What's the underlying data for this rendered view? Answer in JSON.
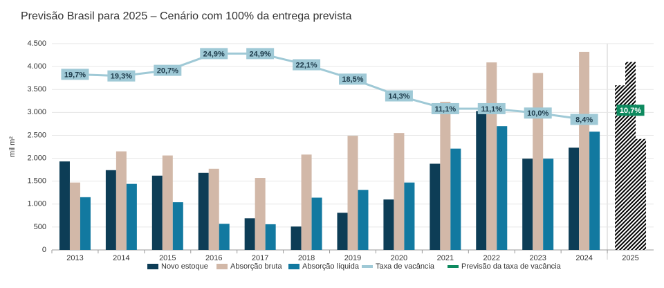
{
  "chart_data": {
    "type": "bar",
    "title": "Previsão Brasil para 2025 – Cenário com 100% da entrega prevista",
    "y_label": "mil m²",
    "categories": [
      "2013",
      "2014",
      "2015",
      "2016",
      "2017",
      "2018",
      "2019",
      "2020",
      "2021",
      "2022",
      "2023",
      "2024",
      "2025"
    ],
    "ylim": [
      0,
      4500
    ],
    "yticks": [
      0,
      500,
      {
        "value": 1000,
        "label": "1.000"
      },
      {
        "value": 1500,
        "label": "1.500"
      },
      {
        "value": 2000,
        "label": "2.000"
      },
      {
        "value": 2500,
        "label": "2.500"
      },
      {
        "value": 3000,
        "label": "3.000"
      },
      {
        "value": 3500,
        "label": "3.500"
      },
      {
        "value": 4000,
        "label": "4.000"
      },
      {
        "value": 4500,
        "label": "4.500"
      }
    ],
    "y2lim": [
      -24.3,
      27.4
    ],
    "grid": true,
    "series": [
      {
        "name": "Novo estoque",
        "type": "bar",
        "color": "#0d3d56",
        "values": [
          1930,
          1740,
          1620,
          1680,
          690,
          510,
          810,
          1100,
          1880,
          3030,
          1990,
          2230,
          3590
        ]
      },
      {
        "name": "Absorção bruta",
        "type": "bar",
        "color": "#d2b8a8",
        "values": [
          1470,
          2150,
          2060,
          1770,
          1570,
          2080,
          2490,
          2550,
          3230,
          4090,
          3860,
          4320,
          4100
        ]
      },
      {
        "name": "Absorção líquida",
        "type": "bar",
        "color": "#1279a0",
        "values": [
          1150,
          1440,
          1040,
          570,
          560,
          1140,
          1310,
          1470,
          2210,
          2700,
          1990,
          2580,
          2420
        ]
      },
      {
        "name": "Taxa de vacância",
        "type": "line",
        "axis": "y2",
        "color": "#9fc9d6",
        "values": [
          19.7,
          19.3,
          20.7,
          24.9,
          24.9,
          22.1,
          18.5,
          14.3,
          11.1,
          11.1,
          10.0,
          8.4,
          null
        ],
        "value_labels": [
          "19,7%",
          "19,3%",
          "20,7%",
          "24,9%",
          "24,9%",
          "22,1%",
          "18,5%",
          "14,3%",
          "11,1%",
          "11,1%",
          "10,0%",
          "8,4%",
          null
        ]
      },
      {
        "name": "Previsão da taxa de vacância",
        "type": "line",
        "axis": "y2",
        "color": "#0e8a5f",
        "values": [
          null,
          null,
          null,
          null,
          null,
          null,
          null,
          null,
          null,
          null,
          null,
          null,
          10.7
        ],
        "value_labels": [
          null,
          null,
          null,
          null,
          null,
          null,
          null,
          null,
          null,
          null,
          null,
          null,
          "10,7%"
        ]
      }
    ]
  }
}
